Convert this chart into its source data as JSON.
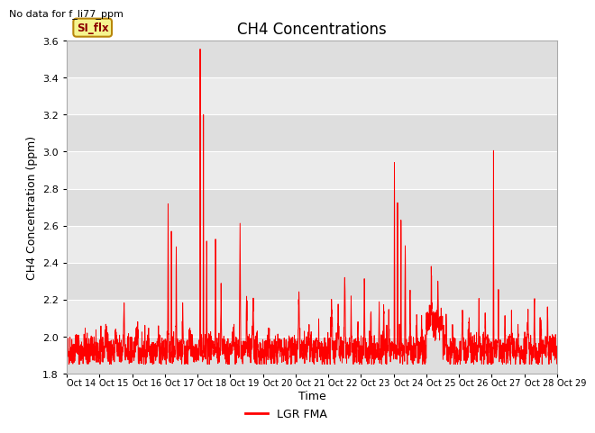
{
  "title": "CH4 Concentrations",
  "ylabel": "CH4 Concentration (ppm)",
  "xlabel": "Time",
  "ylim": [
    1.8,
    3.6
  ],
  "yticks": [
    1.8,
    2.0,
    2.2,
    2.4,
    2.6,
    2.8,
    3.0,
    3.2,
    3.4,
    3.6
  ],
  "xtick_labels": [
    "Oct 14",
    "Oct 15",
    "Oct 16",
    "Oct 17",
    "Oct 18",
    "Oct 19",
    "Oct 20",
    "Oct 21",
    "Oct 22",
    "Oct 23",
    "Oct 24",
    "Oct 25",
    "Oct 26",
    "Oct 27",
    "Oct 28",
    "Oct 29"
  ],
  "line_color": "#ff0000",
  "line_width": 0.7,
  "background_color": "#ffffff",
  "plot_bg_light": "#ebebeb",
  "plot_bg_dark": "#dedede",
  "grid_color": "#ffffff",
  "no_data_text": "No data for f_li77_ppm",
  "si_flx_label": "SI_flx",
  "legend_label": "LGR FMA",
  "title_fontsize": 12,
  "label_fontsize": 9,
  "tick_fontsize": 8,
  "n_days": 15,
  "pts_per_day": 200,
  "base_level": 1.92,
  "base_noise": 0.04
}
